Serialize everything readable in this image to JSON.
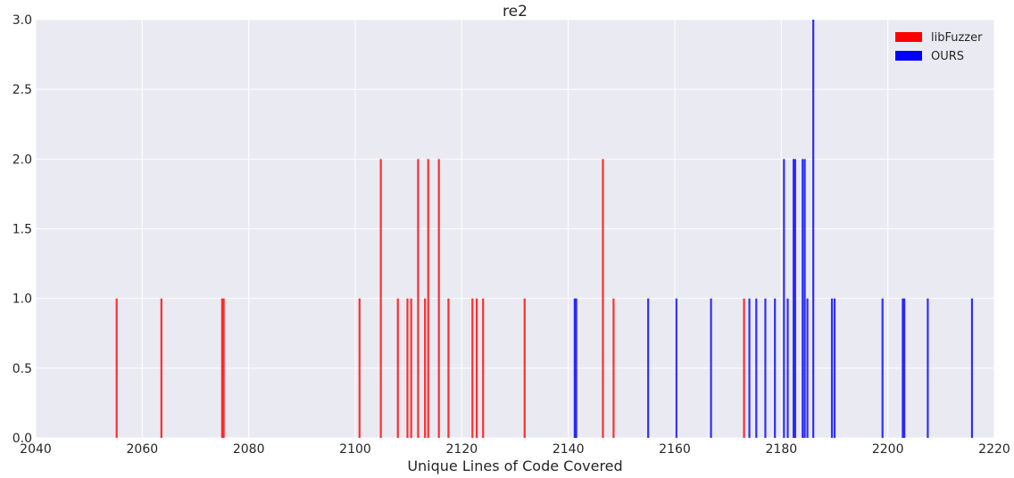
{
  "chart_data": {
    "type": "bar",
    "title": "re2",
    "xlabel": "Unique Lines of Code Covered",
    "ylabel": "",
    "xlim": [
      2040,
      2220
    ],
    "ylim": [
      0,
      3.0
    ],
    "xticks": [
      "2040",
      "2060",
      "2080",
      "2100",
      "2120",
      "2140",
      "2160",
      "2180",
      "2200",
      "2220"
    ],
    "yticks": [
      "0.0",
      "0.5",
      "1.0",
      "1.5",
      "2.0",
      "2.5",
      "3.0"
    ],
    "grid": true,
    "legend_position": "top-right",
    "series": [
      {
        "name": "libFuzzer",
        "color": "#ff0000",
        "x": [
          2055.2,
          2063.6,
          2075.0,
          2075.3,
          2100.8,
          2104.8,
          2108.0,
          2109.8,
          2110.5,
          2111.8,
          2113.1,
          2113.7,
          2115.7,
          2117.5,
          2122.0,
          2122.8,
          2124.0,
          2131.8,
          2146.5,
          2148.5,
          2173.0
        ],
        "values": [
          1,
          1,
          1,
          1,
          1,
          2,
          1,
          1,
          1,
          2,
          1,
          2,
          2,
          1,
          1,
          1,
          1,
          1,
          2,
          1,
          1
        ]
      },
      {
        "name": "OURS",
        "color": "#0000ff",
        "x": [
          2141.2,
          2141.5,
          2155.0,
          2160.3,
          2166.8,
          2174.0,
          2175.3,
          2177.0,
          2178.8,
          2180.5,
          2181.2,
          2182.3,
          2182.6,
          2184.0,
          2184.4,
          2184.9,
          2186.0,
          2189.5,
          2190.0,
          2199.0,
          2202.8,
          2203.1,
          2207.5,
          2215.8
        ],
        "values": [
          1,
          1,
          1,
          1,
          1,
          1,
          1,
          1,
          1,
          2,
          1,
          2,
          2,
          2,
          2,
          1,
          3,
          1,
          1,
          1,
          1,
          1,
          1,
          1
        ]
      }
    ]
  }
}
